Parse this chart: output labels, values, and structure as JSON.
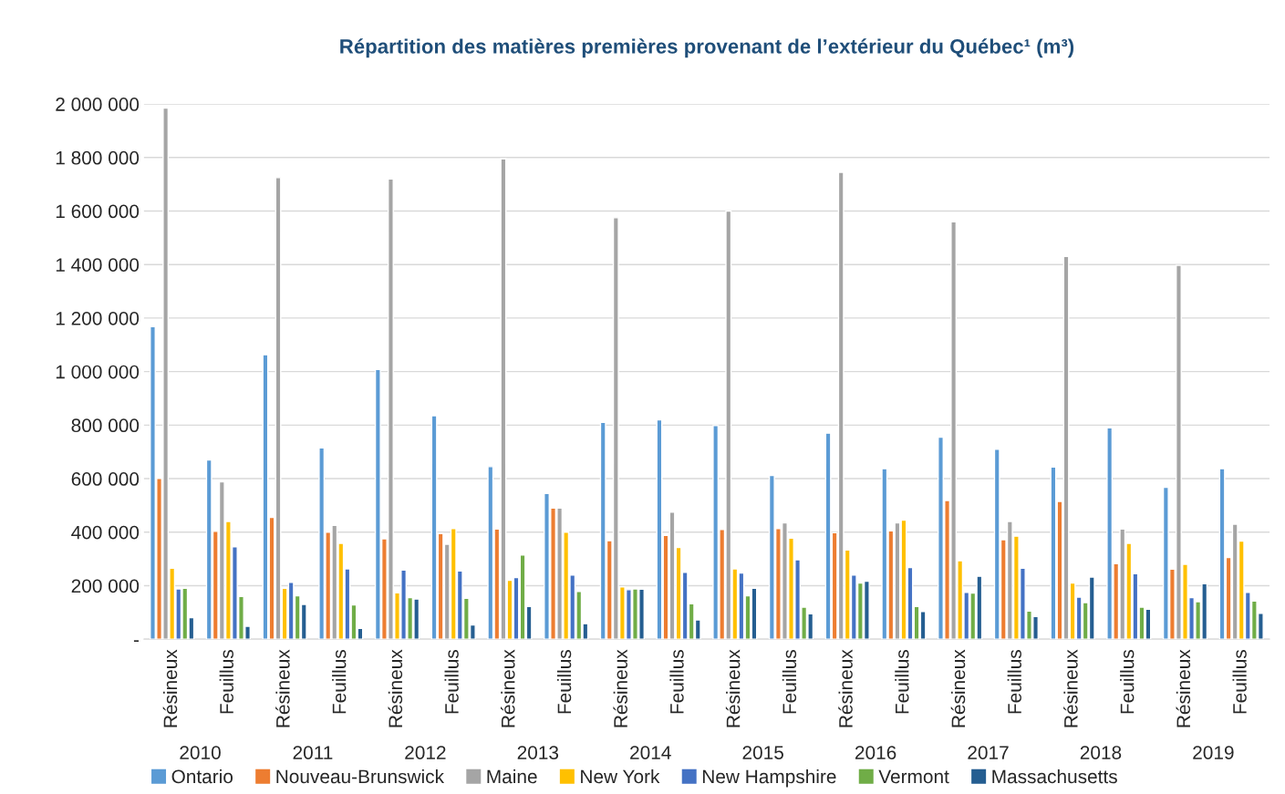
{
  "chart_data": {
    "type": "bar",
    "title": "Répartition des matières premières provenant de l’extérieur du Québec¹ (m³)",
    "categories": [
      "Résineux",
      "Feuillus",
      "Résineux",
      "Feuillus",
      "Résineux",
      "Feuillus",
      "Résineux",
      "Feuillus",
      "Résineux",
      "Feuillus",
      "Résineux",
      "Feuillus",
      "Résineux",
      "Feuillus",
      "Résineux",
      "Feuillus",
      "Résineux",
      "Feuillus",
      "Résineux",
      "Feuillus"
    ],
    "annotations": [
      "2010",
      "2011",
      "2012",
      "2013",
      "2014",
      "2015",
      "2016",
      "2017",
      "2018",
      "2019"
    ],
    "series": [
      {
        "name": "Ontario",
        "color": "#5b9bd5",
        "values": [
          1168000,
          670000,
          1063000,
          715000,
          1008000,
          835000,
          645000,
          545000,
          810000,
          820000,
          798000,
          612000,
          770000,
          637000,
          755000,
          710000,
          643000,
          790000,
          568000,
          637000
        ]
      },
      {
        "name": "Nouveau-Brunswick",
        "color": "#ed7d31",
        "values": [
          601000,
          403000,
          455000,
          400000,
          375000,
          395000,
          412000,
          490000,
          368000,
          388000,
          410000,
          413000,
          398000,
          405000,
          518000,
          372000,
          515000,
          282000,
          262000,
          305000
        ]
      },
      {
        "name": "Maine",
        "color": "#a5a5a5",
        "values": [
          1985000,
          588000,
          1725000,
          425000,
          1720000,
          355000,
          1795000,
          490000,
          1575000,
          475000,
          1600000,
          435000,
          1745000,
          435000,
          1560000,
          440000,
          1430000,
          412000,
          1397000,
          430000
        ]
      },
      {
        "name": "New York",
        "color": "#ffc000",
        "values": [
          265000,
          440000,
          190000,
          358000,
          173000,
          413000,
          220000,
          400000,
          195000,
          343000,
          263000,
          378000,
          333000,
          445000,
          293000,
          385000,
          210000,
          358000,
          280000,
          367000
        ]
      },
      {
        "name": "New Hampshire",
        "color": "#4472c4",
        "values": [
          188000,
          345000,
          212000,
          263000,
          258000,
          255000,
          230000,
          240000,
          185000,
          250000,
          247000,
          297000,
          240000,
          268000,
          175000,
          265000,
          157000,
          245000,
          155000,
          175000
        ]
      },
      {
        "name": "Vermont",
        "color": "#70ad47",
        "values": [
          190000,
          160000,
          162000,
          128000,
          155000,
          153000,
          315000,
          178000,
          188000,
          132000,
          162000,
          120000,
          210000,
          122000,
          172000,
          105000,
          137000,
          120000,
          140000,
          143000
        ]
      },
      {
        "name": "Massachusetts",
        "color": "#255e91",
        "values": [
          80000,
          48000,
          130000,
          40000,
          150000,
          53000,
          122000,
          58000,
          187000,
          72000,
          190000,
          95000,
          217000,
          103000,
          235000,
          85000,
          232000,
          112000,
          207000,
          97000
        ]
      }
    ],
    "ylim": [
      0,
      2000000
    ],
    "yticks": [
      {
        "value": 0,
        "label": "-"
      },
      {
        "value": 200000,
        "label": "200 000"
      },
      {
        "value": 400000,
        "label": "400 000"
      },
      {
        "value": 600000,
        "label": "600 000"
      },
      {
        "value": 800000,
        "label": "800 000"
      },
      {
        "value": 1000000,
        "label": "1 000 000"
      },
      {
        "value": 1200000,
        "label": "1 200 000"
      },
      {
        "value": 1400000,
        "label": "1 400 000"
      },
      {
        "value": 1600000,
        "label": "1 600 000"
      },
      {
        "value": 1800000,
        "label": "1 800 000"
      },
      {
        "value": 2000000,
        "label": "2 000 000"
      }
    ],
    "grid": "y",
    "legend": "bottom"
  }
}
